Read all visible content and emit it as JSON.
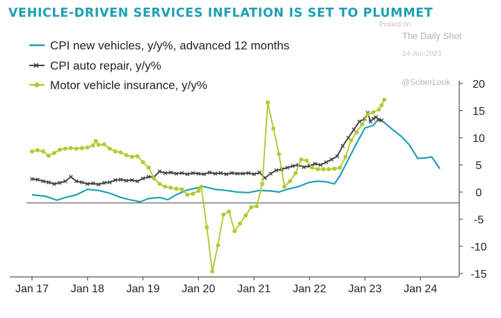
{
  "chart_data": {
    "type": "line",
    "title": "VEHICLE-DRIVEN SERVICES INFLATION IS SET TO PLUMMET",
    "xlabel": "",
    "ylabel": "",
    "ylim": [
      -15,
      20
    ],
    "yticks": [
      20,
      15,
      10,
      5,
      0,
      -5,
      -10,
      -15
    ],
    "xlim": [
      2016.9,
      2024.9
    ],
    "xticks": [
      {
        "label": "Jan 17",
        "x": 2017
      },
      {
        "label": "Jan 18",
        "x": 2018
      },
      {
        "label": "Jan 19",
        "x": 2019
      },
      {
        "label": "Jan 20",
        "x": 2020
      },
      {
        "label": "Jan 21",
        "x": 2021
      },
      {
        "label": "Jan 22",
        "x": 2022
      },
      {
        "label": "Jan 23",
        "x": 2023
      },
      {
        "label": "Jan 24",
        "x": 2024
      }
    ],
    "y_axis_position": "right",
    "grid": false,
    "legend": "top-left",
    "series": [
      {
        "name": "CPI new vehicles, y/y%, advanced 12 months",
        "color": "#1f9fb4",
        "marker": "none",
        "points": [
          [
            2017.0,
            -0.5
          ],
          [
            2017.25,
            -0.8
          ],
          [
            2017.45,
            -1.5
          ],
          [
            2017.6,
            -1.0
          ],
          [
            2017.8,
            -0.5
          ],
          [
            2018.0,
            0.5
          ],
          [
            2018.2,
            0.3
          ],
          [
            2018.4,
            -0.2
          ],
          [
            2018.6,
            -1.0
          ],
          [
            2018.8,
            -1.5
          ],
          [
            2018.95,
            -1.8
          ],
          [
            2019.1,
            -1.2
          ],
          [
            2019.3,
            -1.0
          ],
          [
            2019.45,
            -1.4
          ],
          [
            2019.6,
            -0.5
          ],
          [
            2019.8,
            0.4
          ],
          [
            2019.95,
            0.7
          ],
          [
            2020.1,
            1.0
          ],
          [
            2020.3,
            0.5
          ],
          [
            2020.5,
            0.3
          ],
          [
            2020.7,
            0.0
          ],
          [
            2020.9,
            -0.1
          ],
          [
            2021.1,
            0.3
          ],
          [
            2021.3,
            0.2
          ],
          [
            2021.45,
            0.0
          ],
          [
            2021.6,
            0.5
          ],
          [
            2021.8,
            1.0
          ],
          [
            2022.0,
            1.8
          ],
          [
            2022.15,
            2.0
          ],
          [
            2022.3,
            1.9
          ],
          [
            2022.45,
            1.5
          ],
          [
            2022.55,
            3.0
          ],
          [
            2022.7,
            6.0
          ],
          [
            2022.85,
            9.0
          ],
          [
            2023.0,
            11.8
          ],
          [
            2023.15,
            12.3
          ],
          [
            2023.25,
            13.5
          ],
          [
            2023.35,
            12.8
          ],
          [
            2023.5,
            11.5
          ],
          [
            2023.65,
            10.3
          ],
          [
            2023.8,
            8.7
          ],
          [
            2023.95,
            6.2
          ],
          [
            2024.1,
            6.3
          ],
          [
            2024.2,
            6.5
          ],
          [
            2024.35,
            4.3
          ]
        ]
      },
      {
        "name": "CPI auto repair, y/y%",
        "color": "#444444",
        "marker": "x",
        "points": [
          [
            2017.0,
            2.4
          ],
          [
            2017.1,
            2.3
          ],
          [
            2017.2,
            2.0
          ],
          [
            2017.3,
            1.8
          ],
          [
            2017.4,
            1.5
          ],
          [
            2017.5,
            1.7
          ],
          [
            2017.6,
            2.0
          ],
          [
            2017.7,
            2.8
          ],
          [
            2017.8,
            2.0
          ],
          [
            2017.9,
            1.8
          ],
          [
            2018.0,
            1.5
          ],
          [
            2018.1,
            1.6
          ],
          [
            2018.2,
            1.4
          ],
          [
            2018.3,
            1.7
          ],
          [
            2018.4,
            1.8
          ],
          [
            2018.5,
            2.2
          ],
          [
            2018.6,
            2.3
          ],
          [
            2018.7,
            2.1
          ],
          [
            2018.8,
            2.2
          ],
          [
            2018.9,
            2.0
          ],
          [
            2019.0,
            2.5
          ],
          [
            2019.1,
            2.8
          ],
          [
            2019.2,
            2.8
          ],
          [
            2019.3,
            3.8
          ],
          [
            2019.4,
            3.5
          ],
          [
            2019.5,
            3.6
          ],
          [
            2019.6,
            3.4
          ],
          [
            2019.7,
            3.5
          ],
          [
            2019.8,
            3.3
          ],
          [
            2019.9,
            3.5
          ],
          [
            2020.0,
            3.4
          ],
          [
            2020.1,
            3.3
          ],
          [
            2020.2,
            3.6
          ],
          [
            2020.3,
            3.4
          ],
          [
            2020.4,
            3.5
          ],
          [
            2020.5,
            3.3
          ],
          [
            2020.6,
            3.5
          ],
          [
            2020.7,
            3.4
          ],
          [
            2020.8,
            3.4
          ],
          [
            2020.9,
            3.5
          ],
          [
            2021.0,
            3.3
          ],
          [
            2021.1,
            3.6
          ],
          [
            2021.2,
            2.6
          ],
          [
            2021.3,
            3.4
          ],
          [
            2021.4,
            4.0
          ],
          [
            2021.5,
            4.2
          ],
          [
            2021.6,
            4.5
          ],
          [
            2021.7,
            4.8
          ],
          [
            2021.8,
            5.0
          ],
          [
            2021.9,
            4.6
          ],
          [
            2022.0,
            4.8
          ],
          [
            2022.1,
            5.2
          ],
          [
            2022.2,
            5.0
          ],
          [
            2022.3,
            5.5
          ],
          [
            2022.4,
            6.0
          ],
          [
            2022.5,
            6.6
          ],
          [
            2022.6,
            8.5
          ],
          [
            2022.7,
            10.0
          ],
          [
            2022.8,
            11.5
          ],
          [
            2022.9,
            13.0
          ],
          [
            2023.0,
            13.5
          ],
          [
            2023.05,
            14.6
          ],
          [
            2023.1,
            13.0
          ],
          [
            2023.15,
            13.5
          ],
          [
            2023.2,
            13.8
          ],
          [
            2023.25,
            13.3
          ],
          [
            2023.3,
            13.2
          ]
        ]
      },
      {
        "name": "Motor vehicle insurance, y/y%",
        "color": "#b5c934",
        "marker": "dot",
        "points": [
          [
            2017.0,
            7.5
          ],
          [
            2017.1,
            7.7
          ],
          [
            2017.2,
            7.5
          ],
          [
            2017.3,
            6.7
          ],
          [
            2017.4,
            7.2
          ],
          [
            2017.5,
            7.8
          ],
          [
            2017.6,
            8.0
          ],
          [
            2017.7,
            8.1
          ],
          [
            2017.8,
            8.0
          ],
          [
            2017.9,
            8.1
          ],
          [
            2018.0,
            8.2
          ],
          [
            2018.1,
            8.6
          ],
          [
            2018.15,
            9.4
          ],
          [
            2018.2,
            8.7
          ],
          [
            2018.3,
            8.8
          ],
          [
            2018.4,
            8.0
          ],
          [
            2018.5,
            7.5
          ],
          [
            2018.6,
            7.3
          ],
          [
            2018.7,
            6.8
          ],
          [
            2018.8,
            6.5
          ],
          [
            2018.9,
            6.6
          ],
          [
            2019.0,
            5.5
          ],
          [
            2019.1,
            4.5
          ],
          [
            2019.2,
            2.5
          ],
          [
            2019.3,
            1.5
          ],
          [
            2019.4,
            1.0
          ],
          [
            2019.5,
            0.8
          ],
          [
            2019.6,
            0.6
          ],
          [
            2019.7,
            0.5
          ],
          [
            2019.8,
            -0.5
          ],
          [
            2019.9,
            -0.3
          ],
          [
            2020.0,
            0.2
          ],
          [
            2020.05,
            1.0
          ],
          [
            2020.15,
            -6.5
          ],
          [
            2020.25,
            -14.6
          ],
          [
            2020.35,
            -9.8
          ],
          [
            2020.45,
            -4.2
          ],
          [
            2020.55,
            -3.6
          ],
          [
            2020.65,
            -7.2
          ],
          [
            2020.75,
            -5.8
          ],
          [
            2020.85,
            -4.3
          ],
          [
            2020.95,
            -2.8
          ],
          [
            2021.05,
            -2.6
          ],
          [
            2021.15,
            1.5
          ],
          [
            2021.25,
            16.5
          ],
          [
            2021.35,
            11.7
          ],
          [
            2021.45,
            7.0
          ],
          [
            2021.55,
            1.0
          ],
          [
            2021.65,
            2.0
          ],
          [
            2021.75,
            3.5
          ],
          [
            2021.85,
            6.0
          ],
          [
            2021.95,
            5.8
          ],
          [
            2022.05,
            4.5
          ],
          [
            2022.15,
            4.2
          ],
          [
            2022.25,
            4.2
          ],
          [
            2022.35,
            4.2
          ],
          [
            2022.45,
            4.3
          ],
          [
            2022.55,
            4.5
          ],
          [
            2022.65,
            6.5
          ],
          [
            2022.75,
            9.5
          ],
          [
            2022.85,
            11.0
          ],
          [
            2022.95,
            12.5
          ],
          [
            2023.05,
            14.3
          ],
          [
            2023.15,
            14.7
          ],
          [
            2023.25,
            15.2
          ],
          [
            2023.3,
            16.0
          ],
          [
            2023.35,
            17.0
          ]
        ]
      }
    ],
    "watermark": {
      "posted_on": "Posted on",
      "source": "The Daily Shot",
      "date": "14-Jun-2023",
      "handle": "@SoberLook"
    }
  }
}
